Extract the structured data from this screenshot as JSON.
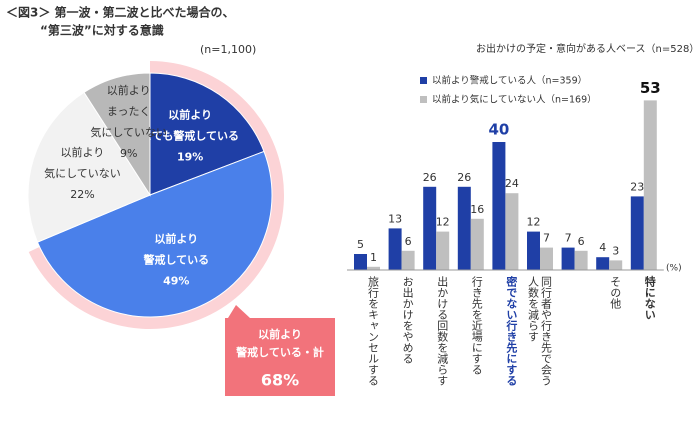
{
  "chart_data": [
    {
      "type": "pie",
      "title": [
        "＜図3＞ 第一波・第二波と比べた場合の、",
        "“第三波”に対する意識"
      ],
      "note": "(n=1,100)",
      "labels": [
        [
          "以前より",
          "とても警戒している"
        ],
        [
          "以前より",
          "警戒している"
        ],
        [
          "以前より",
          "気にしていない"
        ],
        [
          "以前より",
          "まったく",
          "気にしていない"
        ]
      ],
      "values": [
        19,
        49,
        22,
        9
      ],
      "value_labels": [
        "19%",
        "49%",
        "22%",
        "9%"
      ],
      "colors": [
        "#1f3fa6",
        "#4a80ea",
        "#f2f2f2",
        "#b8b8b8"
      ],
      "total": {
        "lines": [
          "以前より",
          "警戒している・計"
        ],
        "value": 68,
        "label": "68%",
        "ring_color": "#fcd3d6",
        "box_color": "#f2737b"
      }
    },
    {
      "type": "bar",
      "note": "お出かけの予定・意向がある人ベース（n=528）",
      "unit": "(%)",
      "categories": [
        [
          "旅行をキャンセルする"
        ],
        [
          "お出かけをやめる"
        ],
        [
          "出かける回数を減らす"
        ],
        [
          "行き先を近場にする"
        ],
        [
          "密でない行き先にする"
        ],
        [
          "同行者や行き先で会う",
          "人数を減らす"
        ],
        null,
        [
          "その他"
        ],
        [
          "特にない"
        ]
      ],
      "series": [
        {
          "name": "以前より警戒している人（n=359）",
          "color": "#1f3fa6",
          "values": [
            5,
            13,
            26,
            26,
            40,
            12,
            7,
            4,
            23
          ]
        },
        {
          "name": "以前より気にしていない人（n=169）",
          "color": "#bfbfbf",
          "values": [
            1,
            6,
            12,
            16,
            24,
            7,
            6,
            3,
            53
          ]
        }
      ],
      "ylim": [
        0,
        55
      ]
    }
  ]
}
